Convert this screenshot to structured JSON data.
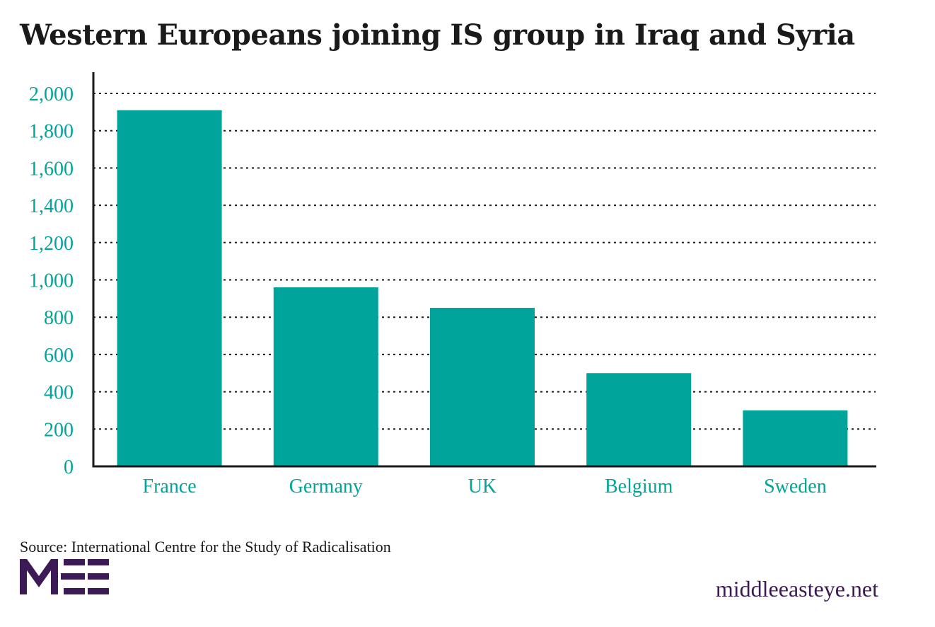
{
  "title": "Western Europeans joining IS group in Iraq and Syria",
  "source": "Source: International Centre for the Study of Radicalisation",
  "logo_text": "MEE",
  "site": "middleeasteye.net",
  "colors": {
    "bar": "#00a49a",
    "text_accent": "#00a49a",
    "logo": "#3b1a55",
    "axis": "#1a1a1a"
  },
  "chart_data": {
    "type": "bar",
    "categories": [
      "France",
      "Germany",
      "UK",
      "Belgium",
      "Sweden"
    ],
    "values": [
      1910,
      960,
      850,
      500,
      300
    ],
    "title": "Western Europeans joining IS group in Iraq and Syria",
    "xlabel": "",
    "ylabel": "",
    "ylim": [
      0,
      2000
    ],
    "yticks": [
      0,
      200,
      400,
      600,
      800,
      1000,
      1200,
      1400,
      1600,
      1800,
      2000
    ],
    "ytick_labels": [
      "0",
      "200",
      "400",
      "600",
      "800",
      "1,000",
      "1,200",
      "1,400",
      "1,600",
      "1,800",
      "2,000"
    ],
    "grid": true,
    "legend": "none"
  }
}
